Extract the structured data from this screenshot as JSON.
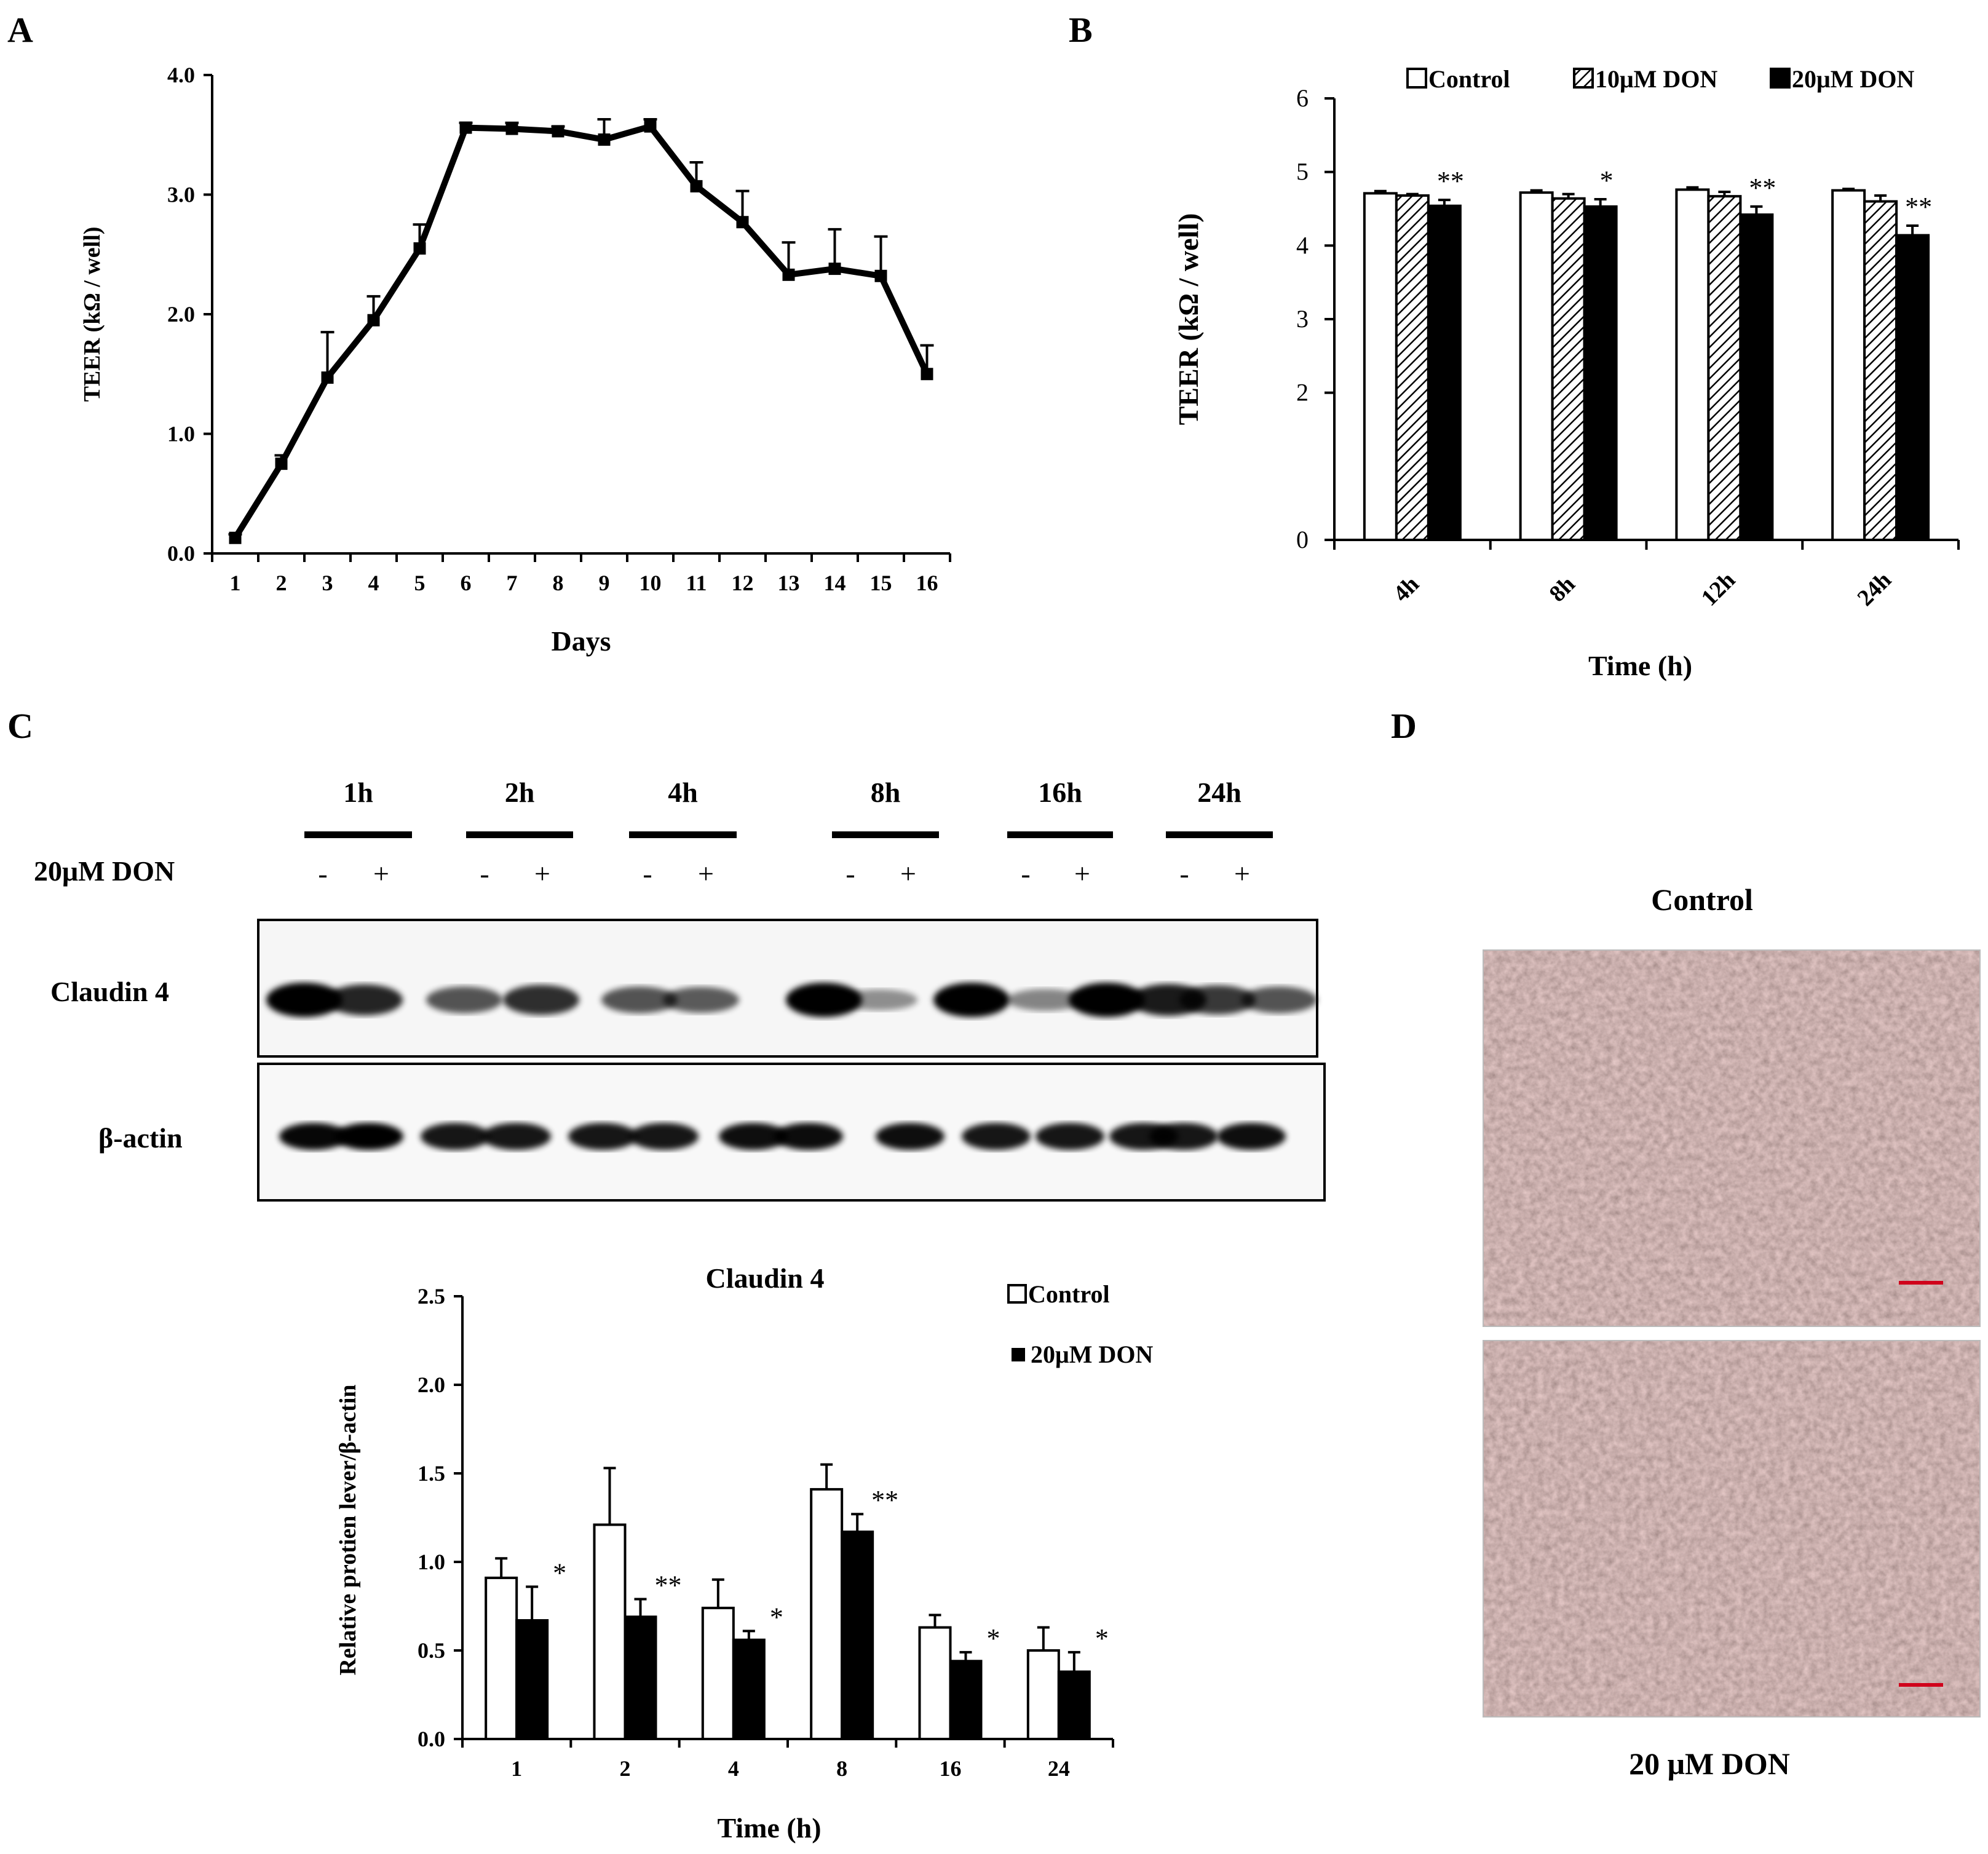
{
  "colors": {
    "control": "#ffffff",
    "don10": "#bdbdbd",
    "don20": "#000000",
    "ink": "#000000",
    "scale_bar": "#d0021b"
  },
  "panels": {
    "A": "A",
    "B": "B",
    "C": "C",
    "D": "D"
  },
  "chart_data": [
    {
      "panel": "A",
      "type": "line",
      "xlabel": "Days",
      "ylabel": "TEER (kΩ / well)",
      "x": [
        1,
        2,
        3,
        4,
        5,
        6,
        7,
        8,
        9,
        10,
        11,
        12,
        13,
        14,
        15,
        16
      ],
      "y": [
        0.13,
        0.75,
        1.47,
        1.95,
        2.55,
        3.56,
        3.55,
        3.53,
        3.46,
        3.57,
        3.07,
        2.77,
        2.33,
        2.38,
        2.32,
        1.5
      ],
      "error": [
        0.03,
        0.07,
        0.38,
        0.2,
        0.2,
        0.04,
        0.05,
        0.04,
        0.17,
        0.06,
        0.2,
        0.26,
        0.27,
        0.33,
        0.33,
        0.24
      ],
      "ylim": [
        0,
        4.0
      ],
      "yticks": [
        "0.0",
        "1.0",
        "2.0",
        "3.0",
        "4.0"
      ],
      "xticks": [
        "1",
        "2",
        "3",
        "4",
        "5",
        "6",
        "7",
        "8",
        "9",
        "10",
        "11",
        "12",
        "13",
        "14",
        "15",
        "16"
      ]
    },
    {
      "panel": "B",
      "type": "bar",
      "xlabel": "Time (h)",
      "ylabel": "TEER (kΩ / well)",
      "categories": [
        "4h",
        "8h",
        "12h",
        "24h"
      ],
      "ylim": [
        0,
        6
      ],
      "yticks": [
        "0",
        "2",
        "3",
        "4",
        "5",
        "6"
      ],
      "legend_position": "top",
      "series": [
        {
          "name": "Control",
          "values": [
            4.71,
            4.72,
            4.76,
            4.75
          ],
          "error": [
            0.03,
            0.03,
            0.03,
            0.02
          ]
        },
        {
          "name": "10μM DON",
          "values": [
            4.68,
            4.64,
            4.67,
            4.6
          ],
          "error": [
            0.02,
            0.06,
            0.06,
            0.08
          ]
        },
        {
          "name": "20μM DON",
          "values": [
            4.54,
            4.53,
            4.42,
            4.14
          ],
          "error": [
            0.08,
            0.1,
            0.11,
            0.13
          ]
        }
      ],
      "significance": [
        "**",
        "*",
        "**",
        "**"
      ]
    },
    {
      "panel": "C",
      "type": "bar",
      "title": "Claudin  4",
      "xlabel": "Time (h)",
      "ylabel": "Relative protien lever/β-actin",
      "categories": [
        "1",
        "2",
        "4",
        "8",
        "16",
        "24"
      ],
      "ylim": [
        0,
        2.5
      ],
      "yticks": [
        "0.0",
        "0.5",
        "1.0",
        "1.5",
        "2.0",
        "2.5"
      ],
      "legend_position": "top-right",
      "series": [
        {
          "name": "Control",
          "values": [
            0.91,
            1.21,
            0.74,
            1.41,
            0.63,
            0.5
          ],
          "error": [
            0.11,
            0.32,
            0.16,
            0.14,
            0.07,
            0.13
          ]
        },
        {
          "name": "20μM DON",
          "values": [
            0.67,
            0.69,
            0.56,
            1.17,
            0.44,
            0.38
          ],
          "error": [
            0.19,
            0.1,
            0.05,
            0.1,
            0.05,
            0.11
          ]
        }
      ],
      "significance": [
        "*",
        "**",
        "*",
        "**",
        "*",
        "*"
      ]
    }
  ],
  "blot": {
    "time_labels": [
      "1h",
      "2h",
      "4h",
      "8h",
      "16h",
      "24h"
    ],
    "treatment_label": "20μM  DON",
    "signs": [
      "-",
      "+"
    ],
    "row_labels": {
      "claudin": "Claudin  4",
      "actin": "β-actin"
    },
    "claudin_intensity": [
      1.0,
      0.8,
      0.55,
      0.75,
      0.55,
      0.5,
      1.0,
      0.22,
      1.0,
      0.28,
      1.0,
      0.85,
      0.7,
      0.55
    ],
    "actin_intensity": [
      0.95,
      1.0,
      0.85,
      0.85,
      0.85,
      0.85,
      0.9,
      0.92,
      0.9,
      0.85,
      0.85,
      0.85,
      0.85,
      0.9
    ]
  },
  "micrographs": {
    "top_label": "Control",
    "bottom_label": "20 μM  DON"
  }
}
